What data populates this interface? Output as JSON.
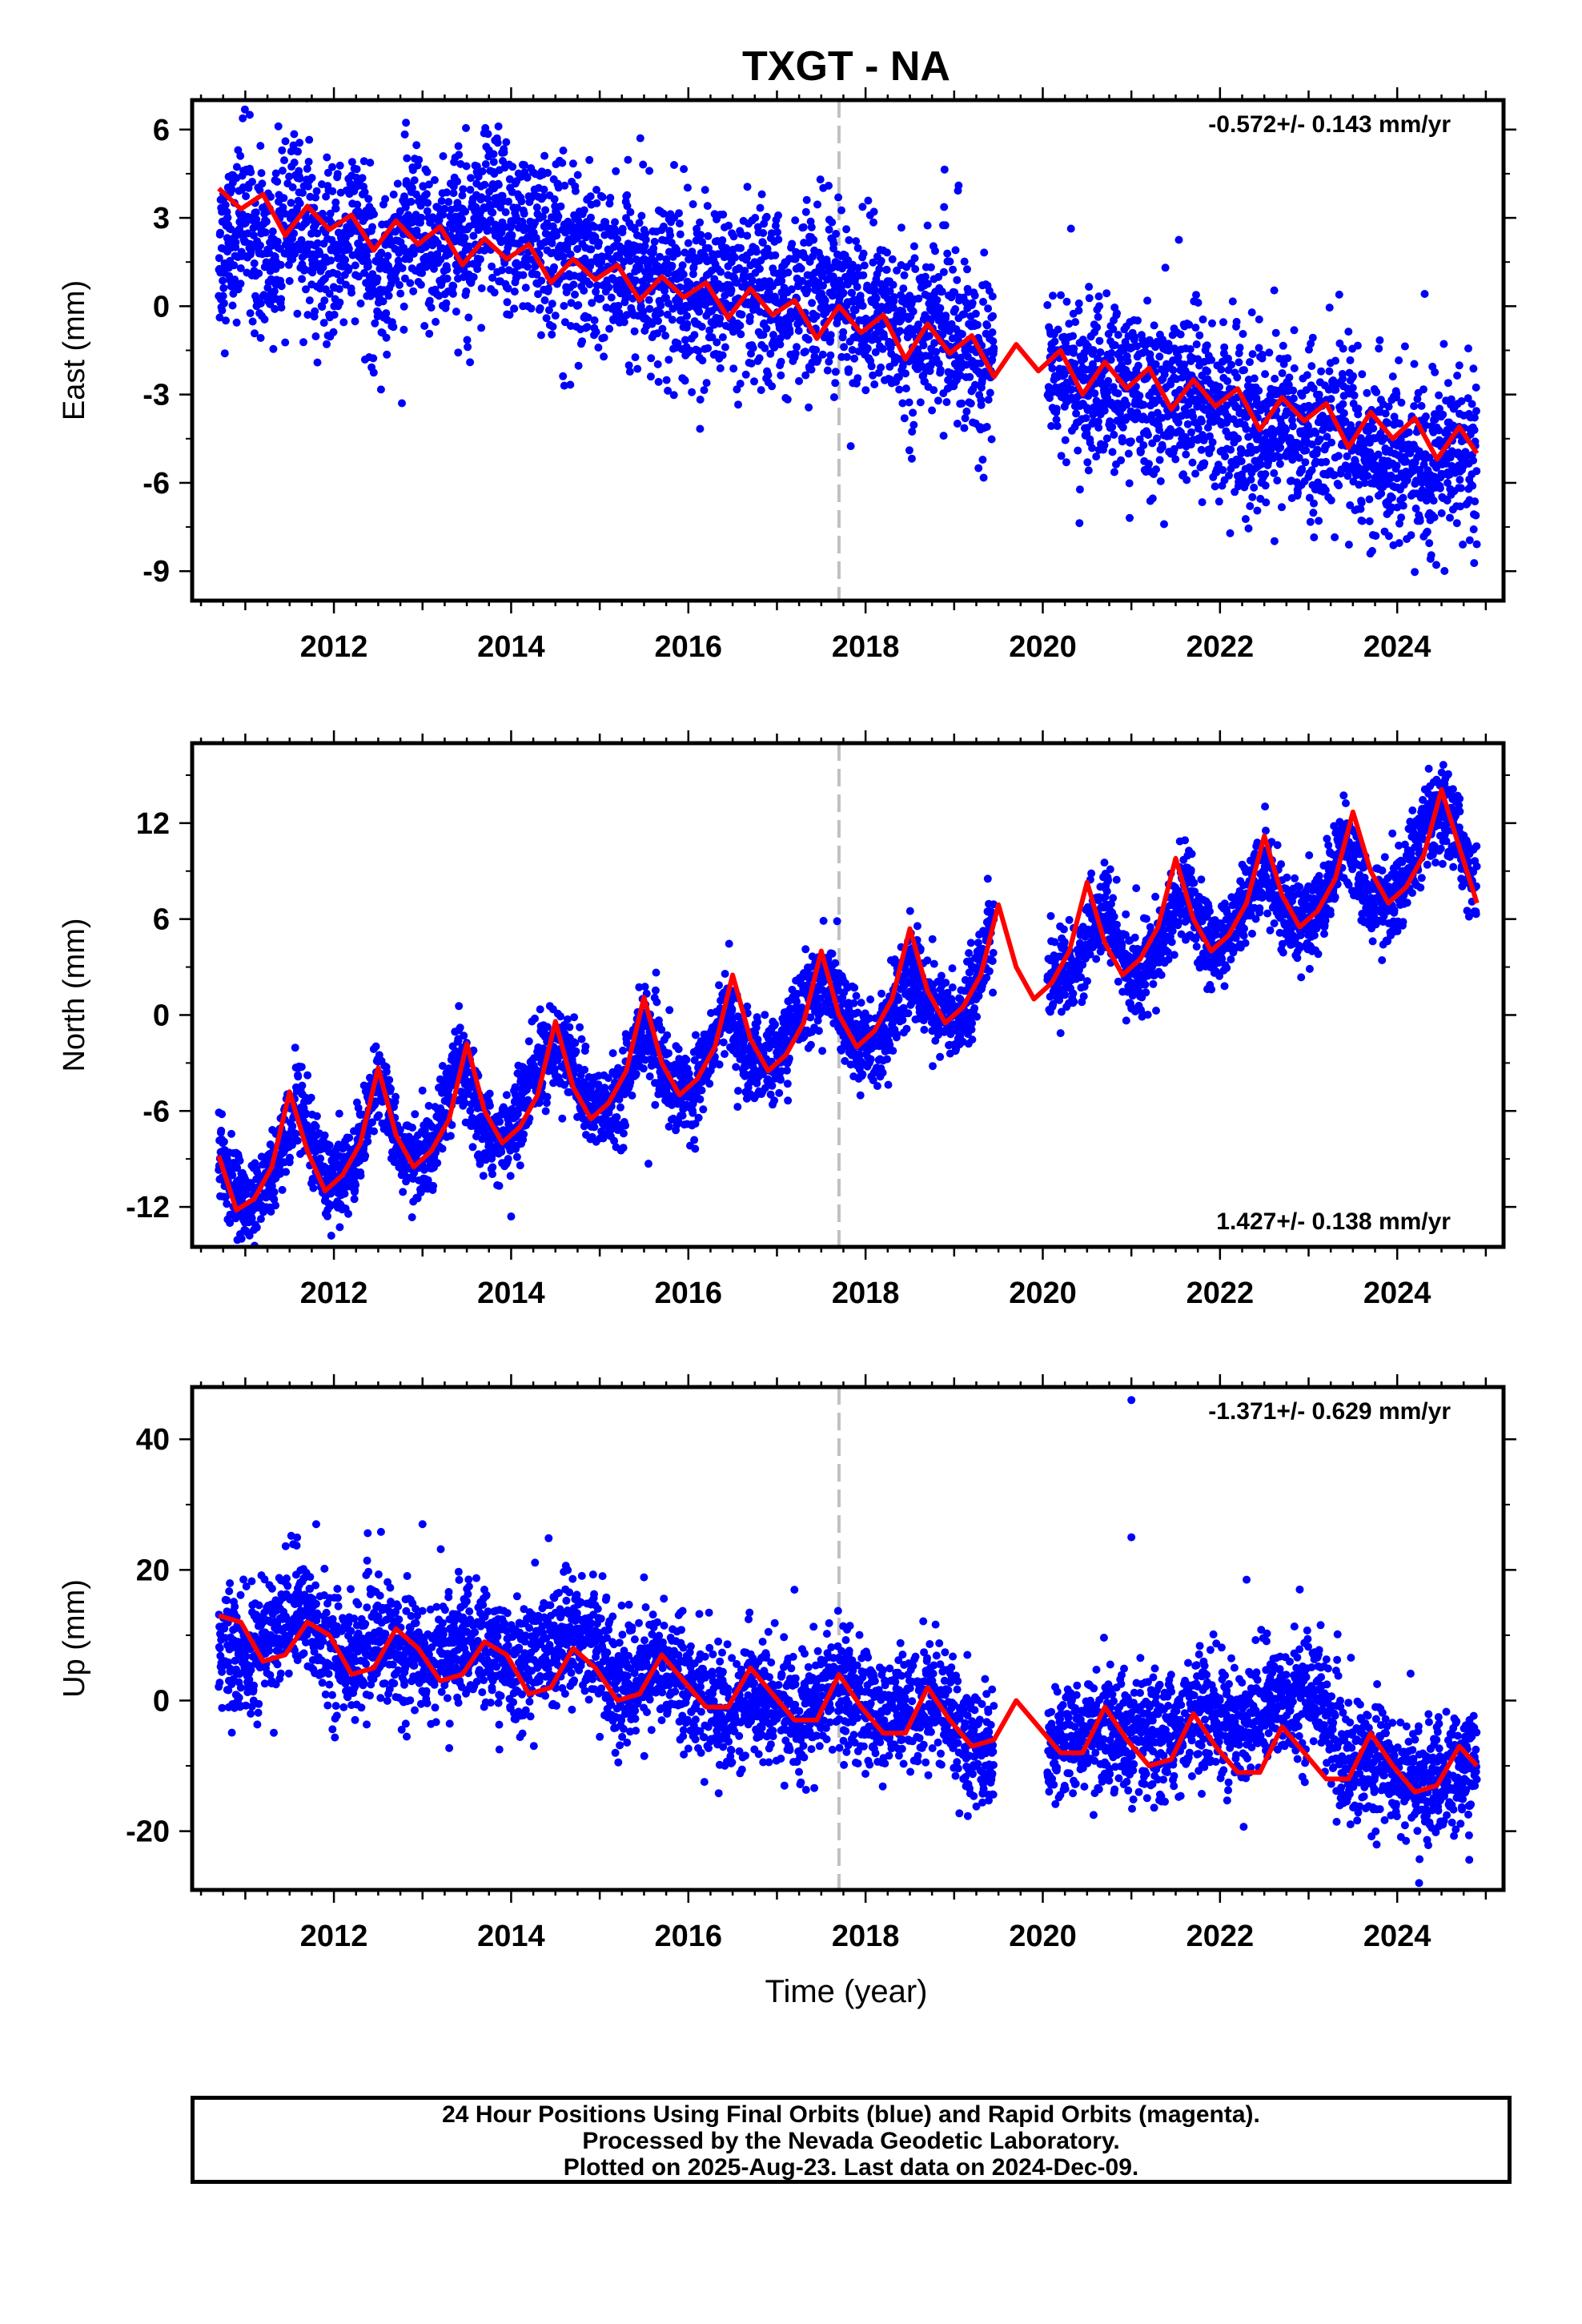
{
  "figure": {
    "title": "TXGT - NA",
    "xlabel": "Time (year)"
  },
  "footer": {
    "line1": "24 Hour Positions Using Final Orbits (blue) and Rapid Orbits (magenta).",
    "line2": "Processed by the Nevada Geodetic Laboratory.",
    "line3": "Plotted on 2025-Aug-23. Last data on 2024-Dec-09."
  },
  "colors": {
    "points": "#0000ff",
    "model": "#ff0000",
    "event_line": "#c0c0c0",
    "frame": "#000000"
  },
  "chart_data": [
    {
      "type": "scatter",
      "id": "east",
      "title": "",
      "xlabel": "",
      "ylabel": "East (mm)",
      "rate_label": "-0.572+/- 0.143 mm/yr",
      "rate_position": "top-right",
      "xlim": [
        2010.4,
        2025.2
      ],
      "ylim": [
        -10,
        7
      ],
      "xticks": [
        2012,
        2014,
        2016,
        2018,
        2020,
        2022,
        2024
      ],
      "yticks": [
        -9,
        -6,
        -3,
        0,
        3,
        6
      ],
      "event_line_x": 2017.7,
      "grid": false,
      "series": [
        {
          "kind": "daily positions (scatter)",
          "x": [
            2010.7,
            2011.0,
            2011.3,
            2011.6,
            2011.9,
            2012.2,
            2012.5,
            2012.8,
            2013.1,
            2013.4,
            2013.7,
            2014.0,
            2014.3,
            2014.6,
            2014.9,
            2015.2,
            2015.5,
            2015.8,
            2016.1,
            2016.4,
            2016.7,
            2017.0,
            2017.3,
            2017.6,
            2017.9,
            2018.2,
            2018.5,
            2018.8,
            2019.1,
            2019.4,
            2020.1,
            2020.4,
            2020.7,
            2021.0,
            2021.3,
            2021.6,
            2021.9,
            2022.2,
            2022.5,
            2022.8,
            2023.1,
            2023.4,
            2023.7,
            2024.0,
            2024.3,
            2024.6,
            2024.9
          ],
          "y": [
            1.8,
            3.0,
            1.5,
            3.2,
            1.2,
            2.8,
            1.0,
            2.5,
            1.8,
            2.5,
            3.2,
            2.8,
            2.2,
            1.8,
            1.5,
            1.2,
            1.0,
            0.8,
            0.2,
            0.5,
            0.0,
            0.3,
            0.2,
            0.6,
            -0.2,
            -0.3,
            -1.0,
            -0.5,
            -1.2,
            -1.8,
            -1.8,
            -2.6,
            -2.8,
            -2.9,
            -3.2,
            -3.0,
            -3.5,
            -3.8,
            -4.2,
            -3.9,
            -4.4,
            -4.0,
            -5.0,
            -5.2,
            -5.6,
            -5.0,
            -5.4
          ]
        },
        {
          "kind": "model (line)",
          "x": [
            2010.7,
            2010.95,
            2011.2,
            2011.45,
            2011.7,
            2011.95,
            2012.2,
            2012.45,
            2012.7,
            2012.95,
            2013.2,
            2013.45,
            2013.7,
            2013.95,
            2014.2,
            2014.45,
            2014.7,
            2014.95,
            2015.2,
            2015.45,
            2015.7,
            2015.95,
            2016.2,
            2016.45,
            2016.7,
            2016.95,
            2017.2,
            2017.45,
            2017.7,
            2017.95,
            2018.2,
            2018.45,
            2018.7,
            2018.95,
            2019.2,
            2019.45,
            2019.7,
            2019.95,
            2020.2,
            2020.45,
            2020.7,
            2020.95,
            2021.2,
            2021.45,
            2021.7,
            2021.95,
            2022.2,
            2022.45,
            2022.7,
            2022.95,
            2023.2,
            2023.45,
            2023.7,
            2023.95,
            2024.2,
            2024.45,
            2024.7,
            2024.9
          ],
          "y": [
            4.0,
            3.3,
            3.8,
            2.4,
            3.4,
            2.6,
            3.1,
            1.9,
            2.9,
            2.1,
            2.7,
            1.4,
            2.3,
            1.6,
            2.1,
            0.8,
            1.6,
            0.9,
            1.4,
            0.2,
            1.0,
            0.3,
            0.8,
            -0.4,
            0.6,
            -0.3,
            0.2,
            -1.1,
            0.0,
            -0.9,
            -0.3,
            -1.8,
            -0.6,
            -1.6,
            -1.0,
            -2.4,
            -1.3,
            -2.2,
            -1.5,
            -3.0,
            -1.9,
            -2.8,
            -2.1,
            -3.5,
            -2.5,
            -3.4,
            -2.8,
            -4.2,
            -3.1,
            -3.9,
            -3.3,
            -4.8,
            -3.6,
            -4.5,
            -3.8,
            -5.2,
            -4.1,
            -5.0
          ]
        }
      ]
    },
    {
      "type": "scatter",
      "id": "north",
      "title": "",
      "xlabel": "",
      "ylabel": "North (mm)",
      "rate_label": "1.427+/- 0.138 mm/yr",
      "rate_position": "bottom-right",
      "xlim": [
        2010.4,
        2025.2
      ],
      "ylim": [
        -14.5,
        17
      ],
      "xticks": [
        2012,
        2014,
        2016,
        2018,
        2020,
        2022,
        2024
      ],
      "yticks": [
        -12,
        -6,
        0,
        6,
        12
      ],
      "event_line_x": 2017.7,
      "grid": false,
      "series": [
        {
          "kind": "daily positions (scatter)",
          "x": [
            2010.7,
            2011.0,
            2011.3,
            2011.6,
            2011.9,
            2012.2,
            2012.5,
            2012.8,
            2013.1,
            2013.4,
            2013.7,
            2014.0,
            2014.3,
            2014.6,
            2014.9,
            2015.2,
            2015.5,
            2015.8,
            2016.1,
            2016.4,
            2016.7,
            2017.0,
            2017.3,
            2017.6,
            2017.9,
            2018.2,
            2018.5,
            2018.8,
            2019.1,
            2019.4,
            2020.1,
            2020.4,
            2020.7,
            2021.0,
            2021.3,
            2021.6,
            2021.9,
            2022.2,
            2022.5,
            2022.8,
            2023.1,
            2023.4,
            2023.7,
            2024.0,
            2024.3,
            2024.6,
            2024.9
          ],
          "y": [
            -9.0,
            -12.0,
            -10.5,
            -5.0,
            -10.5,
            -9.5,
            -4.0,
            -9.0,
            -8.5,
            -3.0,
            -7.5,
            -7.5,
            -3.0,
            -2.0,
            -6.0,
            -5.5,
            -0.5,
            -4.5,
            -4.5,
            0.5,
            -3.0,
            -3.0,
            1.0,
            2.0,
            -2.0,
            -1.5,
            3.0,
            0.0,
            0.0,
            5.0,
            2.0,
            3.5,
            7.0,
            2.0,
            4.0,
            8.0,
            4.0,
            5.5,
            9.5,
            5.5,
            6.5,
            11.0,
            7.0,
            7.5,
            11.5,
            12.5,
            8.0
          ]
        },
        {
          "kind": "model (line)",
          "x": [
            2010.7,
            2010.9,
            2011.1,
            2011.3,
            2011.5,
            2011.7,
            2011.9,
            2012.1,
            2012.3,
            2012.5,
            2012.7,
            2012.9,
            2013.1,
            2013.3,
            2013.5,
            2013.7,
            2013.9,
            2014.1,
            2014.3,
            2014.5,
            2014.7,
            2014.9,
            2015.1,
            2015.3,
            2015.5,
            2015.7,
            2015.9,
            2016.1,
            2016.3,
            2016.5,
            2016.7,
            2016.9,
            2017.1,
            2017.3,
            2017.5,
            2017.7,
            2017.9,
            2018.1,
            2018.3,
            2018.5,
            2018.7,
            2018.9,
            2019.1,
            2019.3,
            2019.5,
            2019.7,
            2019.9,
            2020.1,
            2020.3,
            2020.5,
            2020.7,
            2020.9,
            2021.1,
            2021.3,
            2021.5,
            2021.7,
            2021.9,
            2022.1,
            2022.3,
            2022.5,
            2022.7,
            2022.9,
            2023.1,
            2023.3,
            2023.5,
            2023.7,
            2023.9,
            2024.1,
            2024.3,
            2024.5,
            2024.7,
            2024.9
          ],
          "y": [
            -8.8,
            -12.2,
            -11.5,
            -9.5,
            -4.8,
            -8.5,
            -11.0,
            -10.0,
            -8.0,
            -3.3,
            -7.5,
            -9.5,
            -8.5,
            -6.5,
            -1.8,
            -6.0,
            -8.0,
            -7.0,
            -5.0,
            -0.4,
            -4.5,
            -6.5,
            -5.5,
            -3.5,
            1.1,
            -3.0,
            -5.0,
            -4.0,
            -2.0,
            2.5,
            -1.5,
            -3.5,
            -2.5,
            -0.5,
            4.0,
            0.0,
            -2.0,
            -1.0,
            1.0,
            5.4,
            1.5,
            -0.5,
            0.5,
            2.5,
            6.9,
            3.0,
            1.0,
            2.0,
            4.0,
            8.3,
            4.5,
            2.5,
            3.5,
            5.5,
            9.8,
            6.0,
            4.0,
            5.0,
            7.0,
            11.2,
            7.5,
            5.5,
            6.5,
            8.5,
            12.7,
            9.0,
            7.0,
            8.0,
            10.0,
            14.1,
            10.5,
            7.0
          ]
        }
      ]
    },
    {
      "type": "scatter",
      "id": "up",
      "title": "",
      "xlabel": "Time (year)",
      "ylabel": "Up (mm)",
      "rate_label": "-1.371+/- 0.629 mm/yr",
      "rate_position": "top-right",
      "xlim": [
        2010.4,
        2025.2
      ],
      "ylim": [
        -29,
        48
      ],
      "xticks": [
        2012,
        2014,
        2016,
        2018,
        2020,
        2022,
        2024
      ],
      "yticks": [
        -20,
        0,
        20,
        40
      ],
      "event_line_x": 2017.7,
      "grid": false,
      "series": [
        {
          "kind": "daily positions (scatter)",
          "x": [
            2010.7,
            2011.0,
            2011.3,
            2011.6,
            2011.9,
            2012.2,
            2012.5,
            2012.8,
            2013.1,
            2013.4,
            2013.7,
            2014.0,
            2014.3,
            2014.6,
            2014.9,
            2015.2,
            2015.5,
            2015.8,
            2016.1,
            2016.4,
            2016.7,
            2017.0,
            2017.3,
            2017.6,
            2017.9,
            2018.2,
            2018.5,
            2018.8,
            2019.1,
            2019.4,
            2020.1,
            2020.4,
            2020.7,
            2021.0,
            2021.3,
            2021.6,
            2021.9,
            2022.2,
            2022.5,
            2022.8,
            2023.1,
            2023.4,
            2023.7,
            2024.0,
            2024.3,
            2024.6,
            2024.9
          ],
          "y": [
            8,
            6,
            10,
            14,
            9,
            6,
            10,
            8,
            6,
            9,
            8,
            5,
            7,
            9,
            10,
            2,
            4,
            6,
            0,
            -2,
            1,
            -1,
            -3,
            2,
            0,
            -3,
            -2,
            1,
            -6,
            -7,
            -8,
            -5,
            -4,
            -6,
            -7,
            -3,
            -2,
            -5,
            -1,
            0,
            2,
            -10,
            -8,
            -11,
            -13,
            -12,
            -10
          ]
        },
        {
          "kind": "model (line)",
          "x": [
            2010.7,
            2010.95,
            2011.2,
            2011.45,
            2011.7,
            2011.95,
            2012.2,
            2012.45,
            2012.7,
            2012.95,
            2013.2,
            2013.45,
            2013.7,
            2013.95,
            2014.2,
            2014.45,
            2014.7,
            2014.95,
            2015.2,
            2015.45,
            2015.7,
            2015.95,
            2016.2,
            2016.45,
            2016.7,
            2016.95,
            2017.2,
            2017.45,
            2017.7,
            2017.95,
            2018.2,
            2018.45,
            2018.7,
            2018.95,
            2019.2,
            2019.45,
            2019.7,
            2019.95,
            2020.2,
            2020.45,
            2020.7,
            2020.95,
            2021.2,
            2021.45,
            2021.7,
            2021.95,
            2022.2,
            2022.45,
            2022.7,
            2022.95,
            2023.2,
            2023.45,
            2023.7,
            2023.95,
            2024.2,
            2024.45,
            2024.7,
            2024.9
          ],
          "y": [
            13,
            12,
            6,
            7,
            12,
            10,
            4,
            5,
            11,
            8,
            3,
            4,
            9,
            7,
            1,
            2,
            8,
            5,
            0,
            1,
            7,
            3,
            -1,
            -1,
            5,
            1,
            -3,
            -3,
            4,
            -1,
            -5,
            -5,
            2,
            -3,
            -7,
            -6,
            0,
            -4,
            -8,
            -8,
            -1,
            -6,
            -10,
            -9,
            -2,
            -7,
            -11,
            -11,
            -4,
            -8,
            -12,
            -12,
            -5,
            -10,
            -14,
            -13,
            -7,
            -10
          ]
        }
      ]
    }
  ],
  "outliers": {
    "east": [
      [
        2011.05,
        6.5
      ],
      [
        2014.6,
        -2.7
      ],
      [
        2019.05,
        4.1
      ]
    ],
    "north": [
      [
        2014.0,
        -12.6
      ],
      [
        2015.55,
        -9.3
      ]
    ],
    "up": [
      [
        2021.0,
        46
      ],
      [
        2021.0,
        25
      ],
      [
        2011.8,
        27
      ],
      [
        2013.0,
        27
      ],
      [
        2022.3,
        18.5
      ],
      [
        2022.9,
        17
      ]
    ]
  }
}
